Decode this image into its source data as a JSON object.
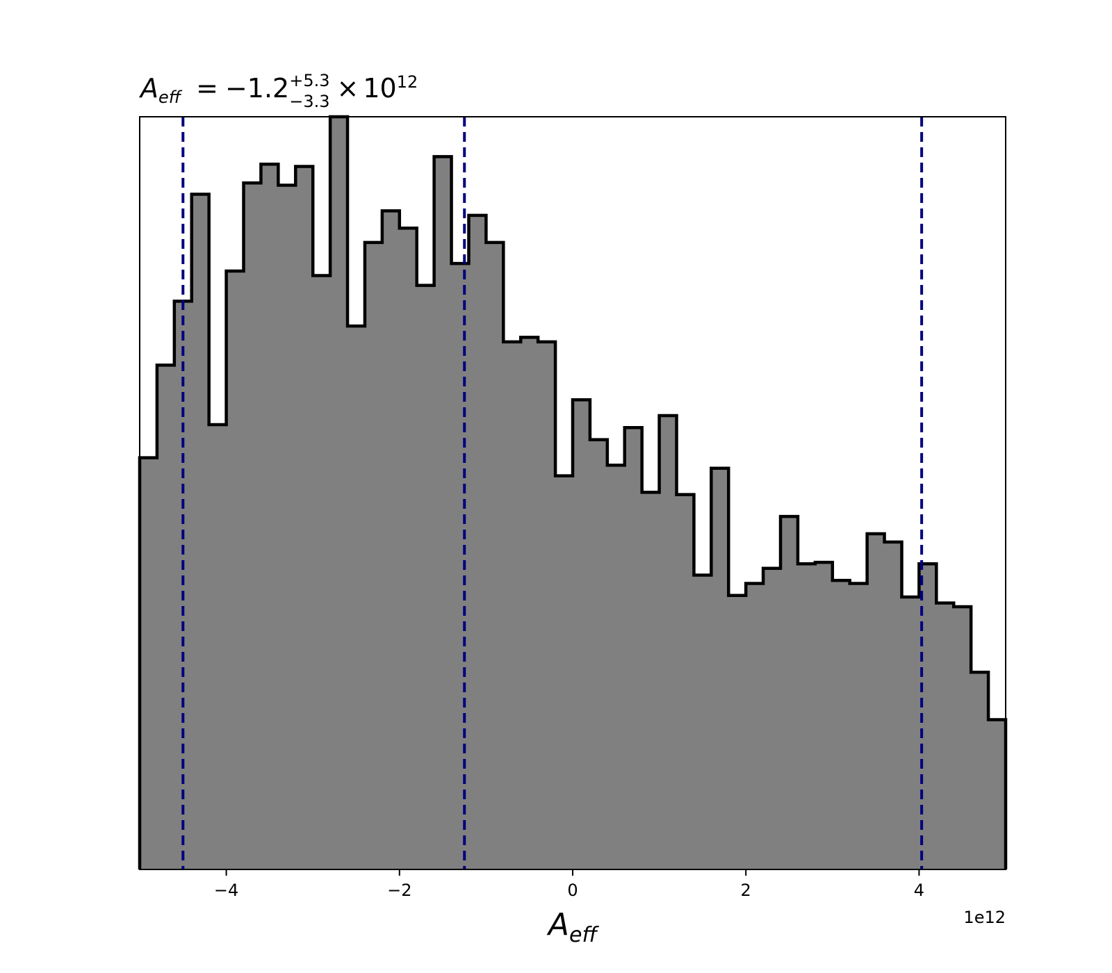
{
  "chart_data": {
    "type": "histogram",
    "title": {
      "symbol": "A",
      "subscript": "eff",
      "equals": "=",
      "value": "−1.2",
      "upper_err": "+5.3",
      "lower_err": "−3.3",
      "times": "×",
      "base": "10",
      "exponent": "12"
    },
    "xlabel": {
      "symbol": "A",
      "subscript": "eff"
    },
    "xlim": [
      -5000000000000.0,
      5000000000000.0
    ],
    "ylim": [
      0,
      1.0
    ],
    "x_offset_label": "1e12",
    "x_ticks": [
      {
        "value": -4000000000000.0,
        "label": "−4"
      },
      {
        "value": -2000000000000.0,
        "label": "−2"
      },
      {
        "value": 0,
        "label": "0"
      },
      {
        "value": 2000000000000.0,
        "label": "2"
      },
      {
        "value": 4000000000000.0,
        "label": "4"
      }
    ],
    "y_ticks_visible": false,
    "bins": {
      "start": -5000000000000.0,
      "width": 200000000000.0,
      "counts": [
        0.547,
        0.67,
        0.755,
        0.897,
        0.591,
        0.795,
        0.912,
        0.937,
        0.909,
        0.934,
        0.789,
        1.0,
        0.722,
        0.833,
        0.875,
        0.852,
        0.776,
        0.947,
        0.805,
        0.869,
        0.833,
        0.701,
        0.707,
        0.701,
        0.523,
        0.624,
        0.571,
        0.537,
        0.587,
        0.501,
        0.603,
        0.498,
        0.391,
        0.533,
        0.364,
        0.38,
        0.4,
        0.469,
        0.406,
        0.408,
        0.384,
        0.38,
        0.446,
        0.435,
        0.362,
        0.406,
        0.354,
        0.349,
        0.262,
        0.199
      ]
    },
    "fill_color": "#808080",
    "edge_color": "#000000",
    "quantile_lines": {
      "values": [
        -4500000000000.0,
        -1250000000000.0,
        4030000000000.0
      ],
      "color": "#00007f",
      "style": "dashed"
    }
  }
}
